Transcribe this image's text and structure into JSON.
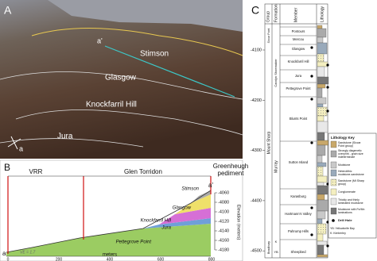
{
  "panel_a": {
    "label": "A",
    "places": [
      "Stimson",
      "Glasgow",
      "Knockfarril Hill",
      "Jura"
    ],
    "a": "a",
    "a_prime": "a'"
  },
  "panel_b": {
    "label": "B",
    "segments": [
      "VRR",
      "Glen Torridon",
      "Greenheugh pediment"
    ],
    "units": [
      "Stimson",
      "Glasgow",
      "Knockfarril Hill",
      "Jura",
      "Pettegrove Point"
    ],
    "a": "a",
    "a_prime": "a'",
    "ve": "VE = 1.7",
    "x_title": "meters",
    "x_ticks": [
      "0",
      "200",
      "400",
      "600",
      "800"
    ],
    "y_title": "Elevation (meters)",
    "y_ticks": [
      "-4060",
      "-4080",
      "-4100",
      "-4120",
      "-4140",
      "-4160",
      "-4180"
    ]
  },
  "panel_c": {
    "label": "C",
    "headers": [
      "Group",
      "Formation",
      "Member",
      "Lithology"
    ],
    "y_ticks": [
      "-4100",
      "-4200",
      "-4300",
      "-4400",
      "-4500"
    ],
    "groups": [
      "Siccar Point",
      "Mount Sharp",
      "Bradbury"
    ],
    "formations": [
      "Carolyn Shoemaker",
      "Murray",
      "K",
      "YB"
    ],
    "members": [
      "Pontours",
      "Mercou",
      "Glasgow",
      "Knockfarril Hill",
      "Jura",
      "Pettegrove Point",
      "Blunts Point",
      "Sutton Island",
      "Karasburg",
      "Hartmann's Valley",
      "Pahrump Hills",
      "Sheepbed"
    ],
    "key_title": "Lithology Key",
    "key": [
      "Sandstone (Siccar Point group)",
      "Strongly diagenetic overprint - grain size indeterminate",
      "Mudstone",
      "Heterolithic mudstone-sandstone",
      "Sandstone (Mt Sharp group)",
      "Conglomerate",
      "Thickly and thinly laminated mudstone",
      "Mudstone with Fe/Mn laminations"
    ],
    "drill": "Drill Hole",
    "notes": [
      "YB: Yellowknife Bay",
      "K: Kimberley"
    ]
  }
}
